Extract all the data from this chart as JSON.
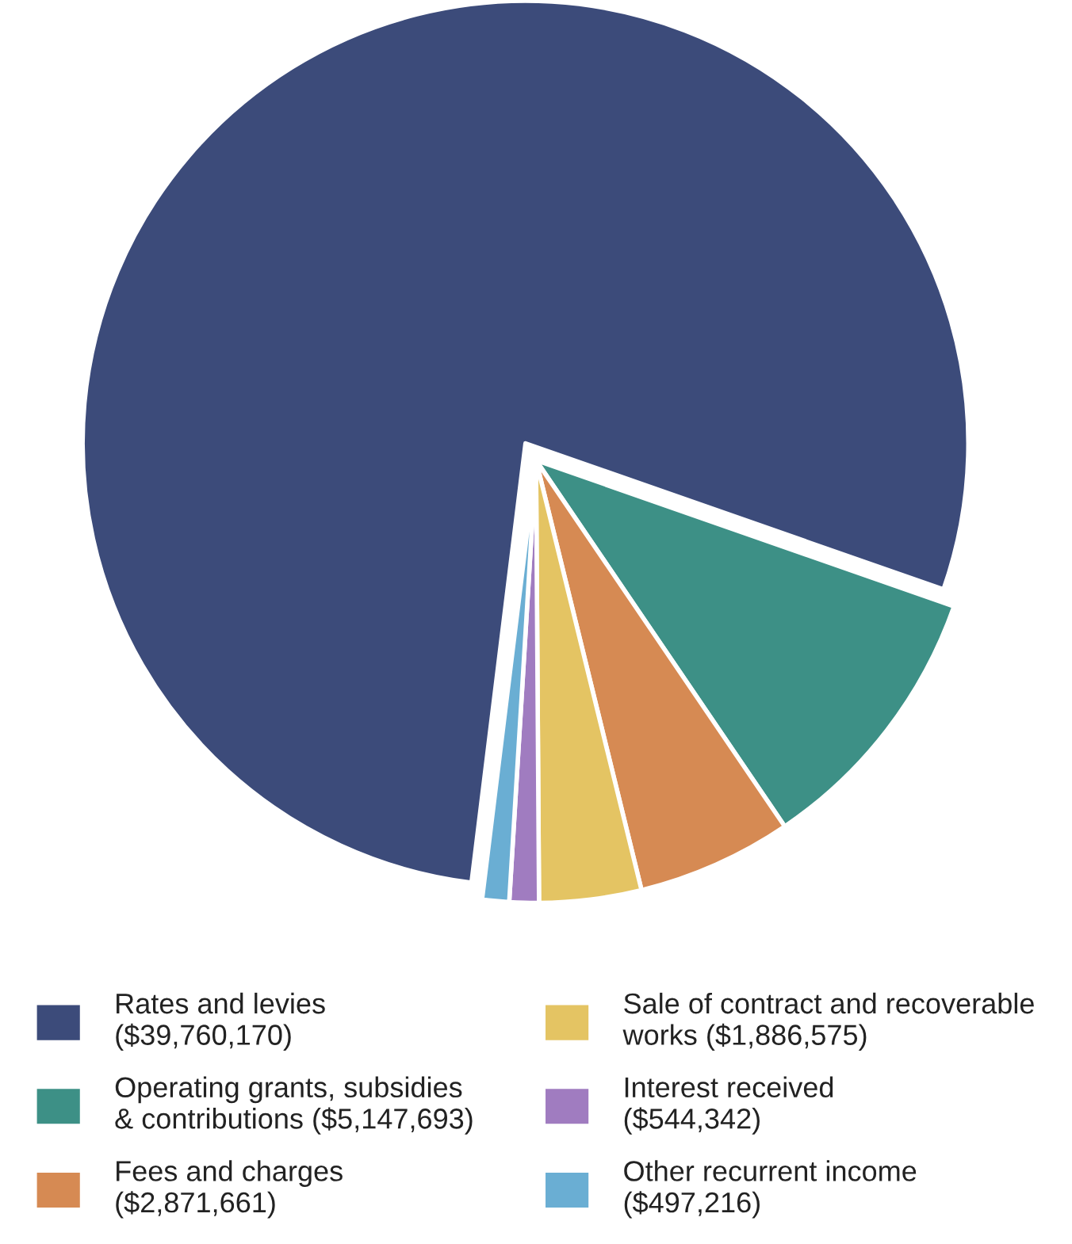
{
  "chart_data": {
    "type": "pie",
    "categories": [
      "Rates and levies\n($39,760,170)",
      "Operating grants, subsidies\n& contributions ($5,147,693)",
      "Fees and charges\n($2,871,661)",
      "Sale of contract and recoverable\nworks ($1,886,575)",
      "Interest received\n($544,342)",
      "Other recurrent income\n($497,216)"
    ],
    "values": [
      39760170,
      5147693,
      2871661,
      1886575,
      544342,
      497216
    ],
    "colors": [
      "#3c4b7a",
      "#3d9086",
      "#d68a53",
      "#e4c463",
      "#a07cc0",
      "#6aaed3"
    ],
    "legend": "bottom"
  }
}
